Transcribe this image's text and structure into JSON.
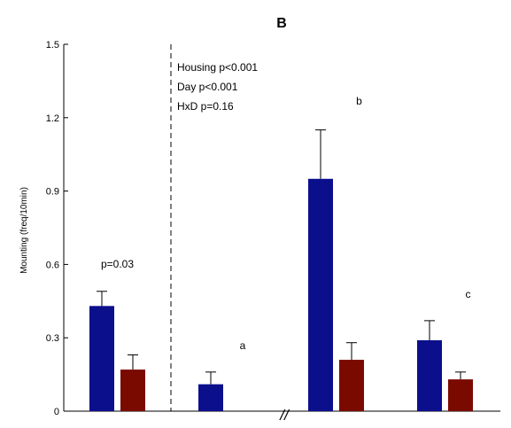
{
  "chart_data": {
    "type": "bar",
    "title": "B",
    "ylabel": "Mounting (freq/10min)",
    "xlabel": "",
    "ylim": [
      0,
      1.5
    ],
    "yticks": [
      "0",
      "0.3",
      "0.6",
      "0.9",
      "1.2",
      "1.5"
    ],
    "grid": false,
    "legend": "none",
    "axis_break_label": "//",
    "stats_text": [
      "Housing p<0.001",
      "Day p<0.001",
      "HxD p=0.16"
    ],
    "groups": [
      {
        "label": "p=0.03",
        "bars": [
          {
            "value": 0.43,
            "error": 0.06,
            "color": "#0b0f8c"
          },
          {
            "value": 0.17,
            "error": 0.06,
            "color": "#7a0a00"
          }
        ]
      },
      {
        "label": "a",
        "bars": [
          {
            "value": 0.11,
            "error": 0.05,
            "color": "#0b0f8c"
          }
        ]
      },
      {
        "label": "b",
        "bars": [
          {
            "value": 0.95,
            "error": 0.2,
            "color": "#0b0f8c"
          },
          {
            "value": 0.21,
            "error": 0.07,
            "color": "#7a0a00"
          }
        ]
      },
      {
        "label": "c",
        "bars": [
          {
            "value": 0.29,
            "error": 0.08,
            "color": "#0b0f8c"
          },
          {
            "value": 0.13,
            "error": 0.03,
            "color": "#7a0a00"
          }
        ]
      }
    ]
  }
}
